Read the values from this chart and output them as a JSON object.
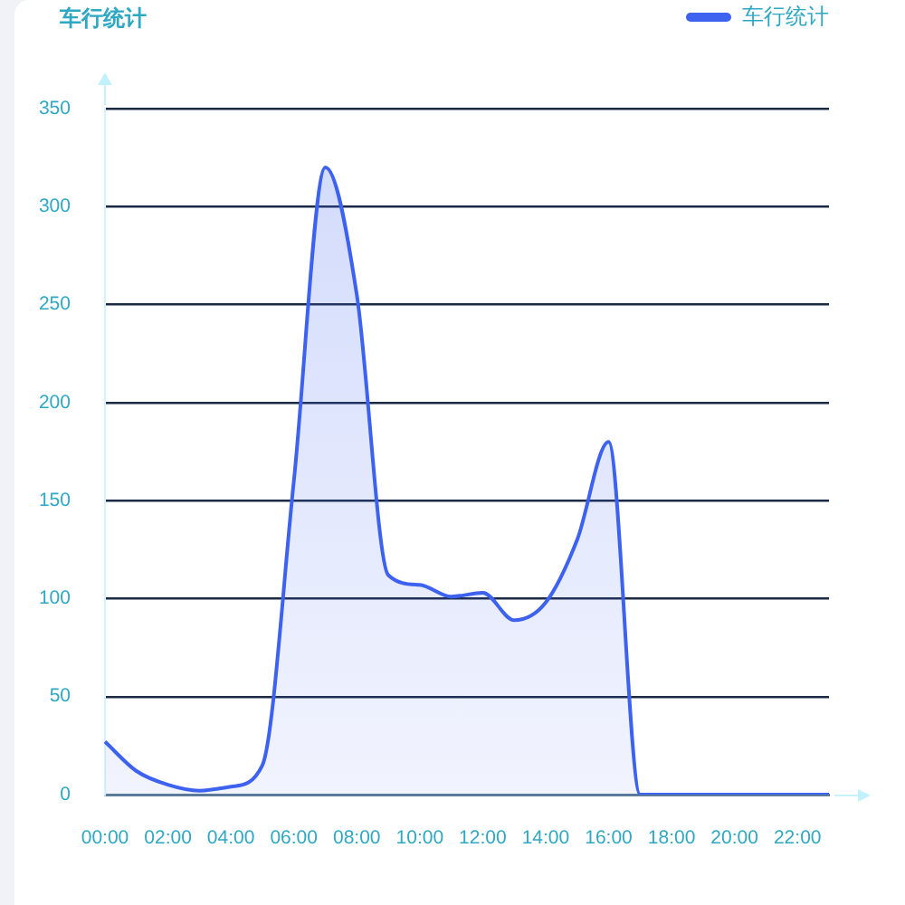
{
  "chart_data": {
    "type": "area",
    "title": "车行统计",
    "categories": [
      "00:00",
      null,
      "02:00",
      null,
      "04:00",
      null,
      "06:00",
      null,
      "08:00",
      null,
      "10:00",
      null,
      "12:00",
      null,
      "14:00",
      null,
      "16:00",
      null,
      "18:00",
      null,
      "20:00",
      null,
      "22:00",
      null
    ],
    "series": [
      {
        "name": "车行统计",
        "color": "#3d62f0",
        "values": [
          27,
          12,
          5,
          2,
          4,
          15,
          160,
          320,
          255,
          112,
          107,
          101,
          103,
          89,
          98,
          130,
          180,
          0,
          0,
          0,
          0,
          0,
          0,
          0
        ]
      }
    ],
    "ylim": [
      0,
      350
    ],
    "yticks": [
      0,
      50,
      100,
      150,
      200,
      250,
      300,
      350
    ],
    "grid": "y",
    "legend": "top right",
    "marker": "none"
  }
}
